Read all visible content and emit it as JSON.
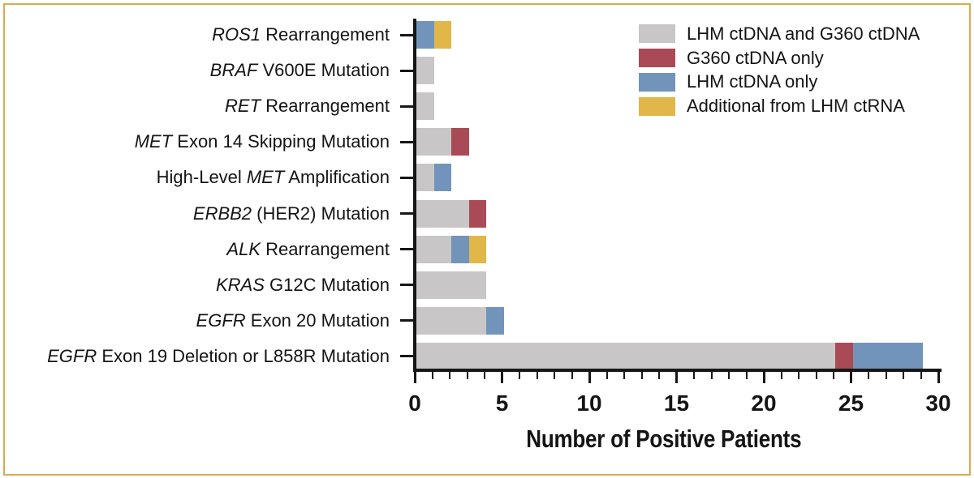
{
  "figure": {
    "background": "#ffffff",
    "border_color": "#d8ab55",
    "axis_color": "#161616",
    "text_color": "#141414"
  },
  "chart_data": {
    "type": "bar",
    "orientation": "horizontal",
    "title": "",
    "xlabel": "Number of Positive Patients",
    "ylabel": "",
    "xlim": [
      0,
      30
    ],
    "x_major_ticks": [
      0,
      5,
      10,
      15,
      20,
      25,
      30
    ],
    "x_minor_tick_step": 1,
    "grid": false,
    "legend_position": "top-right",
    "series": [
      {
        "key": "lhm_and_g360",
        "label": "LHM ctDNA and G360 ctDNA",
        "color": "#c8c6c6"
      },
      {
        "key": "g360_only",
        "label": "G360 ctDNA only",
        "color": "#ab4a57"
      },
      {
        "key": "lhm_only",
        "label": "LHM ctDNA only",
        "color": "#7294ba"
      },
      {
        "key": "ctrna",
        "label": "Additional from LHM ctRNA",
        "color": "#e0b748"
      }
    ],
    "categories": [
      {
        "name": "ROS1 Rearrangement",
        "label_parts": [
          {
            "text": "ROS1",
            "italic": true
          },
          {
            "text": " Rearrangement",
            "italic": false
          }
        ],
        "values": {
          "lhm_and_g360": 0,
          "g360_only": 0,
          "lhm_only": 1,
          "ctrna": 1
        },
        "total": 2
      },
      {
        "name": "BRAF V600E Mutation",
        "label_parts": [
          {
            "text": "BRAF",
            "italic": true
          },
          {
            "text": " V600E Mutation",
            "italic": false
          }
        ],
        "values": {
          "lhm_and_g360": 1,
          "g360_only": 0,
          "lhm_only": 0,
          "ctrna": 0
        },
        "total": 1
      },
      {
        "name": "RET Rearrangement",
        "label_parts": [
          {
            "text": "RET",
            "italic": true
          },
          {
            "text": " Rearrangement",
            "italic": false
          }
        ],
        "values": {
          "lhm_and_g360": 1,
          "g360_only": 0,
          "lhm_only": 0,
          "ctrna": 0
        },
        "total": 1
      },
      {
        "name": "MET Exon 14 Skipping Mutation",
        "label_parts": [
          {
            "text": "MET",
            "italic": true
          },
          {
            "text": " Exon 14 Skipping Mutation",
            "italic": false
          }
        ],
        "values": {
          "lhm_and_g360": 2,
          "g360_only": 1,
          "lhm_only": 0,
          "ctrna": 0
        },
        "total": 3
      },
      {
        "name": "High-Level MET Amplification",
        "label_parts": [
          {
            "text": "High-Level ",
            "italic": false
          },
          {
            "text": "MET",
            "italic": true
          },
          {
            "text": " Amplification",
            "italic": false
          }
        ],
        "values": {
          "lhm_and_g360": 1,
          "g360_only": 0,
          "lhm_only": 1,
          "ctrna": 0
        },
        "total": 2
      },
      {
        "name": "ERBB2 (HER2) Mutation",
        "label_parts": [
          {
            "text": "ERBB2",
            "italic": true
          },
          {
            "text": " (HER2) Mutation",
            "italic": false
          }
        ],
        "values": {
          "lhm_and_g360": 3,
          "g360_only": 1,
          "lhm_only": 0,
          "ctrna": 0
        },
        "total": 4
      },
      {
        "name": "ALK Rearrangement",
        "label_parts": [
          {
            "text": "ALK",
            "italic": true
          },
          {
            "text": " Rearrangement",
            "italic": false
          }
        ],
        "values": {
          "lhm_and_g360": 2,
          "g360_only": 0,
          "lhm_only": 1,
          "ctrna": 1
        },
        "total": 4
      },
      {
        "name": "KRAS G12C Mutation",
        "label_parts": [
          {
            "text": "KRAS",
            "italic": true
          },
          {
            "text": " G12C Mutation",
            "italic": false
          }
        ],
        "values": {
          "lhm_and_g360": 4,
          "g360_only": 0,
          "lhm_only": 0,
          "ctrna": 0
        },
        "total": 4
      },
      {
        "name": "EGFR Exon 20 Mutation",
        "label_parts": [
          {
            "text": "EGFR",
            "italic": true
          },
          {
            "text": " Exon 20 Mutation",
            "italic": false
          }
        ],
        "values": {
          "lhm_and_g360": 4,
          "g360_only": 0,
          "lhm_only": 1,
          "ctrna": 0
        },
        "total": 5
      },
      {
        "name": "EGFR Exon 19 Deletion or L858R Mutation",
        "label_parts": [
          {
            "text": "EGFR",
            "italic": true
          },
          {
            "text": " Exon 19 Deletion or L858R Mutation",
            "italic": false
          }
        ],
        "values": {
          "lhm_and_g360": 24,
          "g360_only": 1,
          "lhm_only": 4,
          "ctrna": 0
        },
        "total": 29
      }
    ]
  }
}
